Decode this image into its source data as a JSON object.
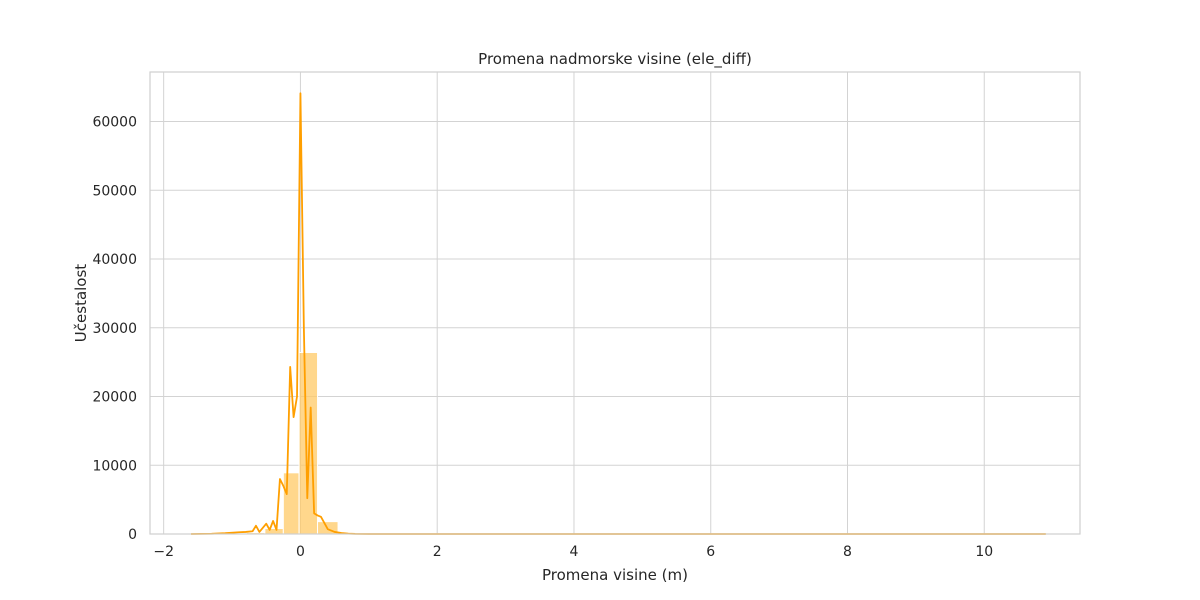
{
  "chart_data": {
    "type": "bar",
    "title": "Promena nadmorske visine (ele_diff)",
    "xlabel": "Promena visine (m)",
    "ylabel": "Učestalost",
    "xlim": [
      -2.2,
      11.4
    ],
    "ylim": [
      0,
      67200
    ],
    "xticks": [
      -2,
      0,
      2,
      4,
      6,
      8,
      10
    ],
    "xtick_labels": [
      "−2",
      "0",
      "2",
      "4",
      "6",
      "8",
      "10"
    ],
    "yticks": [
      0,
      10000,
      20000,
      30000,
      40000,
      50000,
      60000
    ],
    "ytick_labels": [
      "0",
      "10000",
      "20000",
      "30000",
      "40000",
      "50000",
      "60000"
    ],
    "grid": true,
    "colors": {
      "bar_fill": "#ffc966",
      "bar_stroke": "#ffffff",
      "kde_line": "#ff9f00",
      "grid": "#d3d3d3",
      "frame": "#cfcfcf",
      "text": "#262626"
    },
    "bars": [
      {
        "x0": -1.6,
        "x1": -1.33,
        "value": 20
      },
      {
        "x0": -1.33,
        "x1": -1.06,
        "value": 50
      },
      {
        "x0": -1.06,
        "x1": -0.79,
        "value": 100
      },
      {
        "x0": -0.79,
        "x1": -0.52,
        "value": 200
      },
      {
        "x0": -0.52,
        "x1": -0.25,
        "value": 800
      },
      {
        "x0": -0.25,
        "x1": -0.02,
        "value": 8900
      },
      {
        "x0": -0.02,
        "x1": 0.25,
        "value": 26400
      },
      {
        "x0": 0.25,
        "x1": 0.55,
        "value": 1800
      },
      {
        "x0": 0.55,
        "x1": 0.82,
        "value": 150
      },
      {
        "x0": 0.82,
        "x1": 1.09,
        "value": 50
      },
      {
        "x0": 1.09,
        "x1": 10.9,
        "value": 10
      }
    ],
    "kde": {
      "x": [
        -1.6,
        -1.3,
        -1.1,
        -0.9,
        -0.8,
        -0.7,
        -0.65,
        -0.6,
        -0.55,
        -0.5,
        -0.45,
        -0.4,
        -0.35,
        -0.3,
        -0.25,
        -0.2,
        -0.15,
        -0.1,
        -0.05,
        0.0,
        0.05,
        0.1,
        0.15,
        0.2,
        0.25,
        0.3,
        0.4,
        0.5,
        0.6,
        0.7,
        0.8,
        1.0,
        1.5,
        2.0,
        4.0,
        6.0,
        8.0,
        10.0,
        10.9
      ],
      "y": [
        0,
        40,
        120,
        250,
        300,
        400,
        1200,
        300,
        900,
        1500,
        600,
        1900,
        600,
        8000,
        7000,
        5800,
        24300,
        17000,
        20000,
        64100,
        30000,
        5200,
        18400,
        3000,
        2700,
        2500,
        700,
        300,
        150,
        60,
        20,
        5,
        2,
        0,
        0,
        0,
        0,
        0,
        0
      ]
    }
  }
}
